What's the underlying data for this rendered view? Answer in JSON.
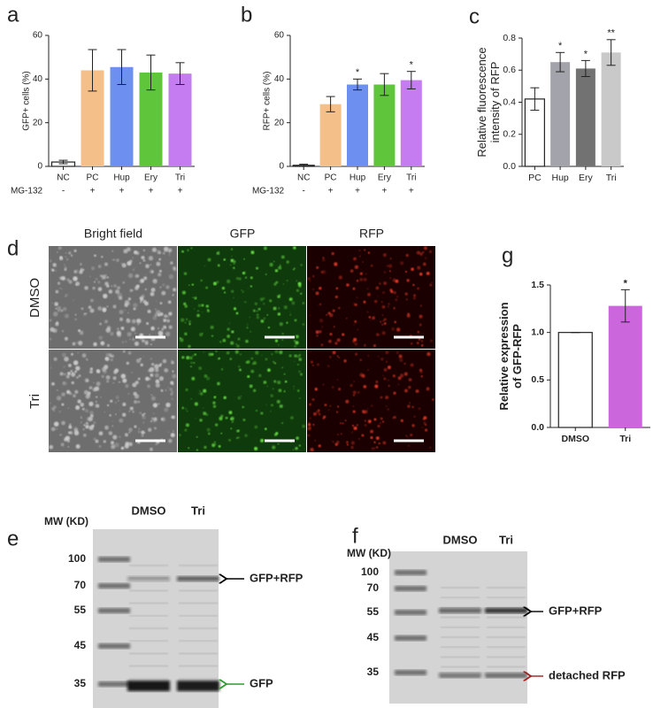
{
  "chart_data": [
    {
      "type": "bar",
      "panel": "a",
      "ylabel": [
        "GFP+ cells (%)"
      ],
      "categories": [
        "NC",
        "PC",
        "Hup",
        "Ery",
        "Tri"
      ],
      "values": [
        2,
        44,
        45.5,
        43,
        42.5
      ],
      "errors": [
        0.8,
        9.5,
        8,
        8,
        5
      ],
      "colors": [
        "#ffffff",
        "#f4bf88",
        "#6d90f0",
        "#5fc63c",
        "#c47cf0"
      ],
      "annotations": [
        null,
        null,
        null,
        null,
        null
      ],
      "treatment_label": "MG-132",
      "treatment": [
        "-",
        "+",
        "+",
        "+",
        "+"
      ],
      "ylim": [
        0,
        60
      ],
      "yticks": [
        0,
        20,
        40,
        60
      ]
    },
    {
      "type": "bar",
      "panel": "b",
      "ylabel": [
        "RFP+ cells (%)"
      ],
      "categories": [
        "NC",
        "PC",
        "Hup",
        "Ery",
        "Tri"
      ],
      "values": [
        0.5,
        28.5,
        37.5,
        37.5,
        39.5
      ],
      "errors": [
        0.5,
        3.5,
        2.5,
        5,
        4
      ],
      "colors": [
        "#ffffff",
        "#f4bf88",
        "#6d90f0",
        "#5fc63c",
        "#c47cf0"
      ],
      "annotations": [
        null,
        null,
        "*",
        null,
        "*"
      ],
      "treatment_label": "MG-132",
      "treatment": [
        "-",
        "+",
        "+",
        "+",
        "+"
      ],
      "ylim": [
        0,
        60
      ],
      "yticks": [
        0,
        20,
        40,
        60
      ]
    },
    {
      "type": "bar",
      "panel": "c",
      "ylabel": [
        "Relative fluorescence",
        "intensity of RFP"
      ],
      "categories": [
        "PC",
        "Hup",
        "Ery",
        "Tri"
      ],
      "values": [
        0.42,
        0.65,
        0.61,
        0.71
      ],
      "errors": [
        0.07,
        0.06,
        0.05,
        0.08
      ],
      "colors": [
        "#ffffff",
        "#a3a3ab",
        "#727272",
        "#c9c9c9"
      ],
      "annotations": [
        null,
        "*",
        "*",
        "**"
      ],
      "ylim": [
        0,
        0.8
      ],
      "yticks": [
        {
          "value": 0,
          "label": "0.0"
        },
        0.2,
        0.4,
        0.6,
        0.8
      ]
    },
    {
      "type": "bar",
      "panel": "g",
      "ylabel": [
        "Relative expression",
        "of GFP-RFP"
      ],
      "categories": [
        "DMSO",
        "Tri"
      ],
      "values": [
        1.0,
        1.28
      ],
      "errors": [
        0,
        0.17
      ],
      "colors": [
        "#ffffff",
        "#cc66dd"
      ],
      "annotations": [
        null,
        "*"
      ],
      "ylim": [
        0,
        1.5
      ],
      "yticks": [
        {
          "value": 0,
          "label": "0.0"
        },
        0.5,
        {
          "value": 1,
          "label": "1.0"
        },
        1.5
      ]
    }
  ],
  "microscopy": {
    "panel": "d",
    "columns": [
      "Bright field",
      "GFP",
      "RFP"
    ],
    "rows": [
      "DMSO",
      "Tri"
    ]
  },
  "gels": [
    {
      "panel": "e",
      "mw_title": "MW (KD)",
      "mw": [
        100,
        70,
        55,
        45,
        35
      ],
      "lanes": [
        "DMSO",
        "Tri"
      ],
      "band_labels": [
        {
          "text": "GFP+RFP",
          "color": "#000000"
        },
        {
          "text": "GFP",
          "color": "#2e9a2e"
        }
      ]
    },
    {
      "panel": "f",
      "mw_title": "MW (KD)",
      "mw": [
        100,
        70,
        55,
        45,
        35
      ],
      "lanes": [
        "DMSO",
        "Tri"
      ],
      "band_labels": [
        {
          "text": "GFP+RFP",
          "color": "#000000"
        },
        {
          "text": "detached RFP",
          "color": "#a02020"
        }
      ]
    }
  ]
}
